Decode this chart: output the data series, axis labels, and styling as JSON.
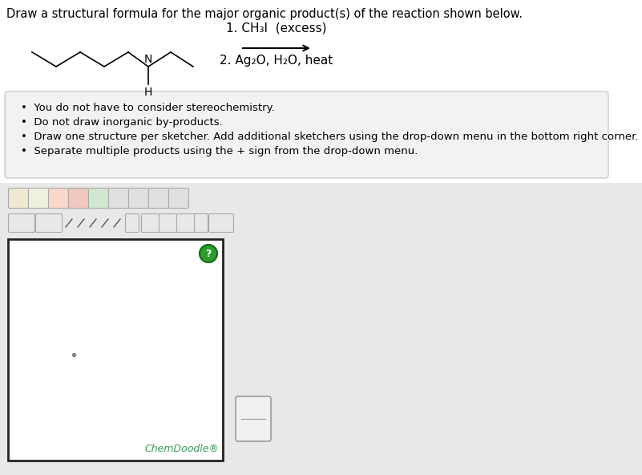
{
  "title_text": "Draw a structural formula for the major organic product(s) of the reaction shown below.",
  "title_fontsize": 10.5,
  "title_color": "#000000",
  "bg_color": "#ffffff",
  "bullet_box_bg": "#f2f2f2",
  "bullet_box_edge": "#cccccc",
  "bullet_texts": [
    "You do not have to consider stereochemistry.",
    "Do not draw inorganic by-products.",
    "Draw one structure per sketcher. Add additional sketchers using the drop-down menu in the bottom right corner.",
    "Separate multiple products using the + sign from the drop-down menu."
  ],
  "bullet_fontsize": 9.5,
  "reaction_step1": "1. CH₃I  (excess)",
  "reaction_step2": "2. Ag₂O, H₂O, heat",
  "reaction_fontsize": 11,
  "chemdoodle_text": "ChemDoodle®",
  "chemdoodle_color": "#3a9a5c",
  "chemdoodle_fontsize": 9,
  "bg_lower": "#e8e8e8"
}
